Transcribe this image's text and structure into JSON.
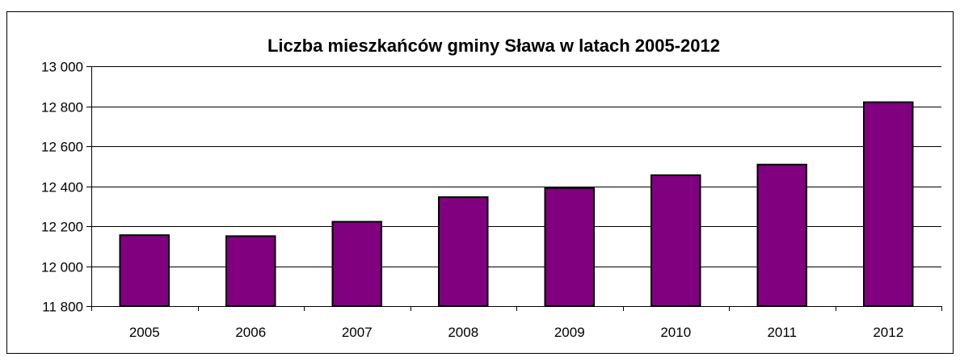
{
  "chart_data": {
    "type": "bar",
    "title": "Liczba mieszkańców gminy Sława w latach 2005-2012",
    "categories": [
      "2005",
      "2006",
      "2007",
      "2008",
      "2009",
      "2010",
      "2011",
      "2012"
    ],
    "values": [
      12155,
      12150,
      12222,
      12345,
      12390,
      12455,
      12508,
      12820
    ],
    "xlabel": "",
    "ylabel": "",
    "ylim": [
      11800,
      13000
    ],
    "yticks": [
      11800,
      12000,
      12200,
      12400,
      12600,
      12800,
      13000
    ],
    "ytick_labels": [
      "11 800",
      "12 000",
      "12 200",
      "12 400",
      "12 600",
      "12 800",
      "13 000"
    ],
    "grid": true,
    "legend": "none",
    "bar_color": "#800080",
    "bar_edge_color": "#000000"
  }
}
